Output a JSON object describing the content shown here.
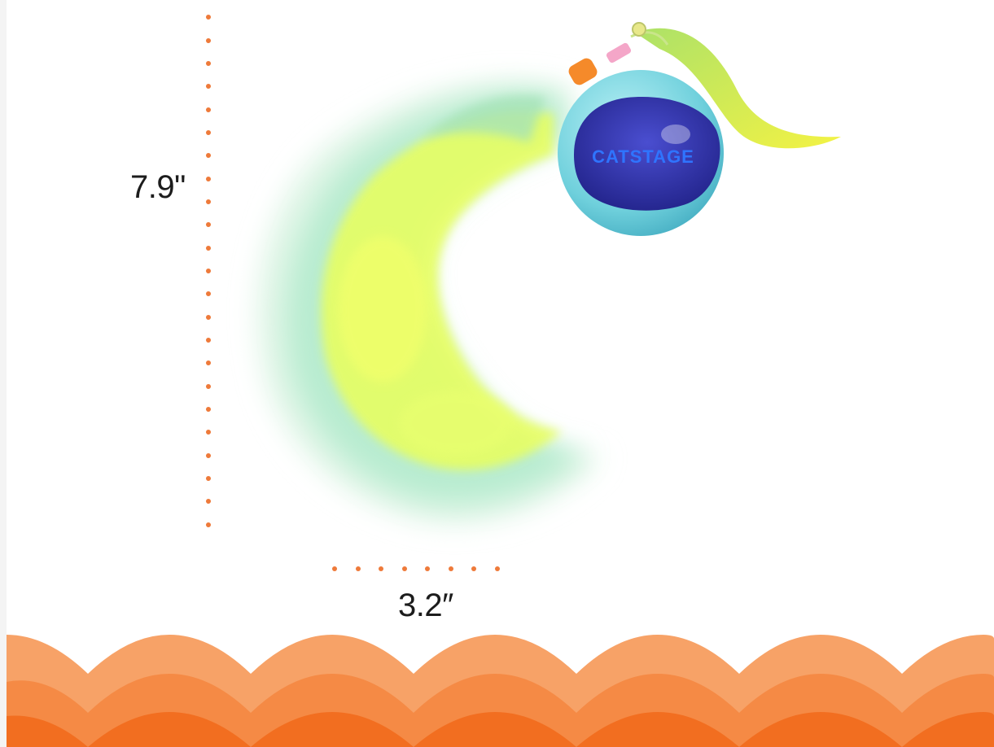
{
  "product": {
    "name": "CATSTAGE",
    "height_label": "7.9\"",
    "width_label": "3.2″"
  },
  "colors": {
    "dots": "#ee7a3a",
    "wave_light": "#f7a267",
    "wave_mid": "#f58a45",
    "wave_dark": "#f26e20",
    "ball_outer": "#7fd8e2",
    "ball_window": "#2e2fa8",
    "feather_yellow": "#e4ff3a",
    "feather_teal": "#9fe0c4"
  },
  "icons": [
    "cat-toy-ball-icon",
    "feather-tail-icon"
  ]
}
